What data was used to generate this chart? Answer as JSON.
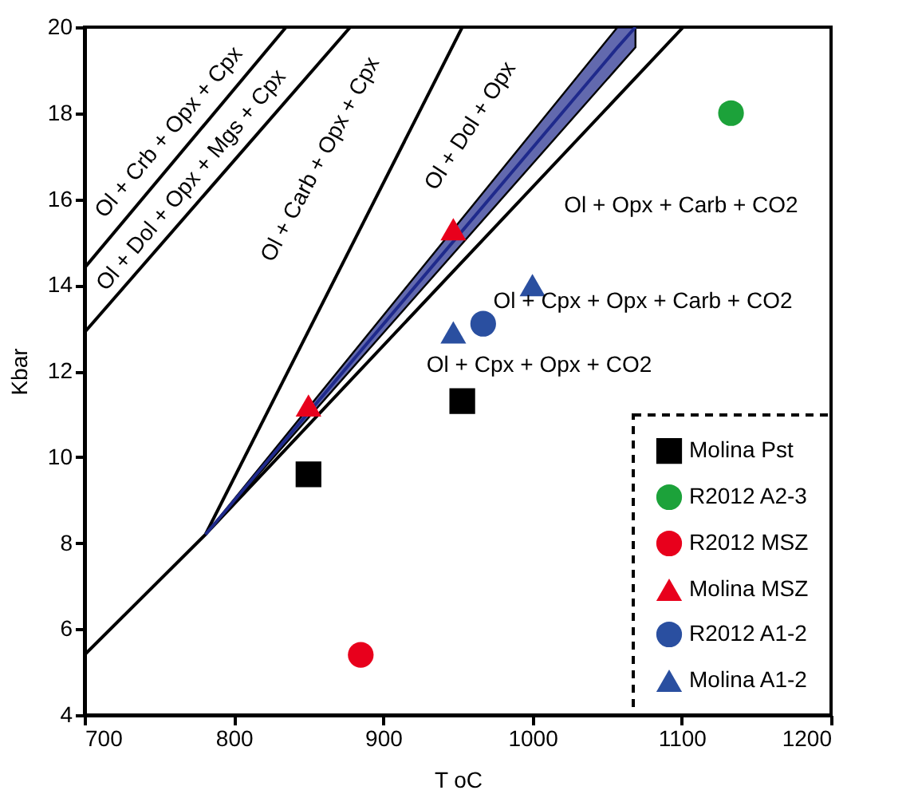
{
  "chart_data": {
    "type": "scatter",
    "xlabel": "T oC",
    "ylabel": "Kbar",
    "xlim": [
      700,
      1200
    ],
    "ylim": [
      4,
      20
    ],
    "xticks": [
      700,
      800,
      900,
      1000,
      1100,
      1200
    ],
    "yticks": [
      4,
      6,
      8,
      10,
      12,
      14,
      16,
      18,
      20
    ],
    "grid": false,
    "legend": "bottom right",
    "series": [
      {
        "type": "line",
        "color": "#000000",
        "x": [
          700,
          835
        ],
        "values": [
          14.4,
          20
        ]
      },
      {
        "type": "line",
        "color": "#000000",
        "x": [
          700,
          878
        ],
        "values": [
          12.9,
          20
        ]
      },
      {
        "type": "line",
        "color": "#000000",
        "x": [
          700,
          781,
          1101
        ],
        "values": [
          5.4,
          8.2,
          20
        ]
      },
      {
        "type": "line",
        "color": "#000000",
        "x": [
          781,
          953
        ],
        "values": [
          8.2,
          20
        ]
      },
      {
        "type": "line",
        "color": "#1f2a8c",
        "x": [
          781,
          1057,
          1069
        ],
        "values": [
          8.2,
          19.53,
          20
        ],
        "upper": [
          8.2,
          20,
          20
        ],
        "lower": [
          8.2,
          19.06,
          19.53
        ]
      },
      {
        "name": "Molina Pst",
        "color": "#000000",
        "marker": "square",
        "x": [
          850,
          953
        ],
        "values": [
          9.6,
          11.3
        ]
      },
      {
        "name": "R2012 A2-3",
        "color": "#1ca23a",
        "marker": "circle",
        "x": [
          1133
        ],
        "values": [
          18.0
        ]
      },
      {
        "name": "R2012 MSZ",
        "color": "#e8001c",
        "marker": "circle",
        "x": [
          885
        ],
        "values": [
          5.4
        ]
      },
      {
        "name": "Molina MSZ",
        "color": "#e8001c",
        "marker": "triangle",
        "x": [
          850,
          947
        ],
        "values": [
          11.2,
          15.3
        ]
      },
      {
        "name": "R2012 A1-2",
        "color": "#2a4fa0",
        "marker": "circle",
        "x": [
          967
        ],
        "values": [
          13.1
        ]
      },
      {
        "name": "Molina A1-2",
        "color": "#2a4fa0",
        "marker": "triangle",
        "x": [
          947,
          1000
        ],
        "values": [
          12.9,
          14.0
        ]
      }
    ],
    "annotations": [
      "Ol + Crb + Opx + Cpx",
      "Ol + Dol + Opx + Mgs + Cpx",
      "Ol + Carb + Opx + Cpx",
      "Ol + Dol + Opx",
      "Ol + Opx + Carb + CO2",
      "Ol + Cpx + Opx + Carb + CO2",
      "Ol + Cpx + Opx + CO2"
    ]
  }
}
